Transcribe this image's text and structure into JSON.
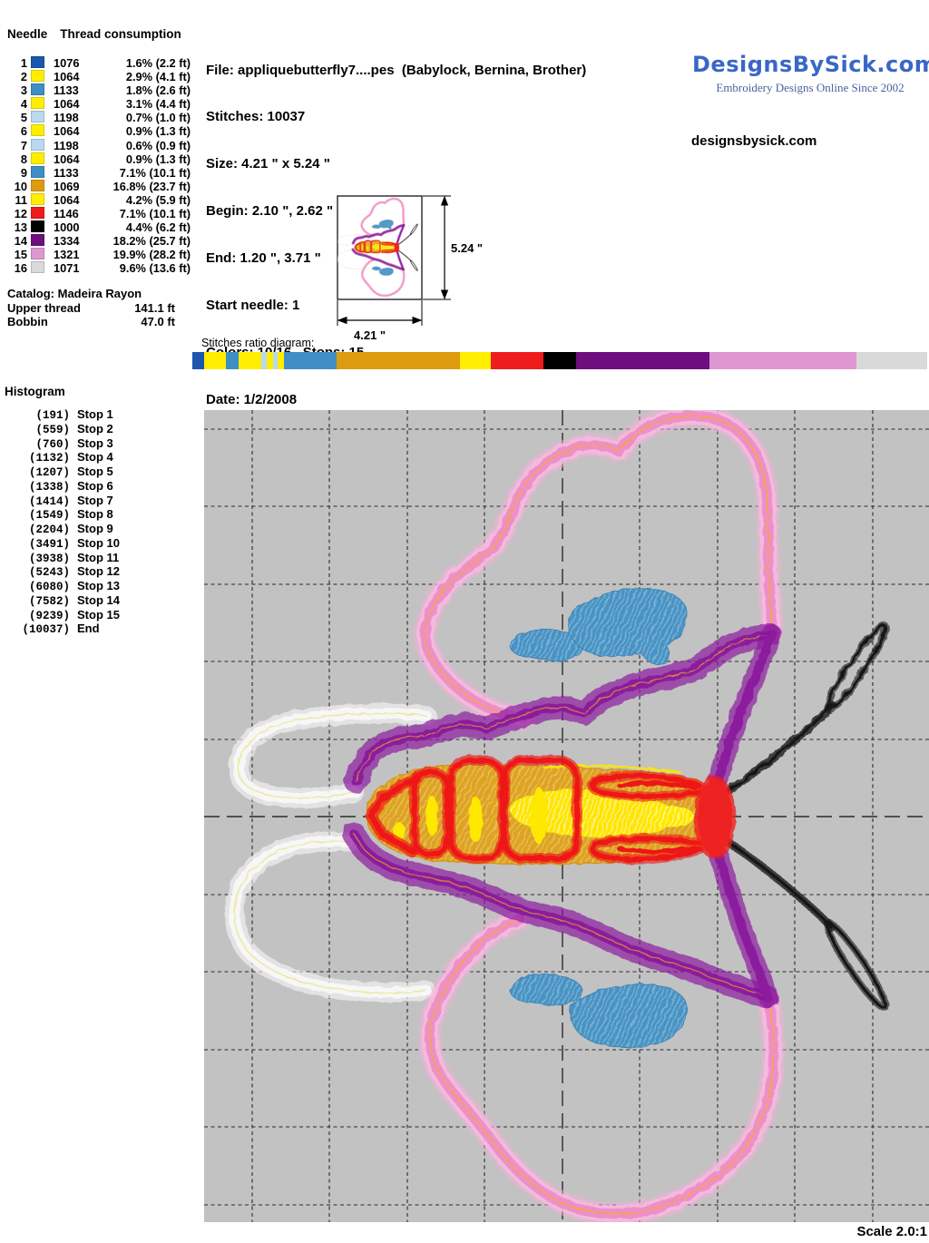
{
  "needle_table": {
    "header_col1": "Needle",
    "header_col2": "Thread consumption",
    "rows": [
      {
        "needle": "1",
        "code": "1076",
        "color": "#1c56ae",
        "pct": "1.6",
        "ft": "2.2"
      },
      {
        "needle": "2",
        "code": "1064",
        "color": "#ffee00",
        "pct": "2.9",
        "ft": "4.1"
      },
      {
        "needle": "3",
        "code": "1133",
        "color": "#3f8fc5",
        "pct": "1.8",
        "ft": "2.6"
      },
      {
        "needle": "4",
        "code": "1064",
        "color": "#ffee00",
        "pct": "3.1",
        "ft": "4.4"
      },
      {
        "needle": "5",
        "code": "1198",
        "color": "#b9d9ef",
        "pct": "0.7",
        "ft": "1.0"
      },
      {
        "needle": "6",
        "code": "1064",
        "color": "#ffee00",
        "pct": "0.9",
        "ft": "1.3"
      },
      {
        "needle": "7",
        "code": "1198",
        "color": "#b9d9ef",
        "pct": "0.6",
        "ft": "0.9"
      },
      {
        "needle": "8",
        "code": "1064",
        "color": "#ffee00",
        "pct": "0.9",
        "ft": "1.3"
      },
      {
        "needle": "9",
        "code": "1133",
        "color": "#3f8fc5",
        "pct": "7.1",
        "ft": "10.1"
      },
      {
        "needle": "10",
        "code": "1069",
        "color": "#dd9c10",
        "pct": "16.8",
        "ft": "23.7"
      },
      {
        "needle": "11",
        "code": "1064",
        "color": "#ffee00",
        "pct": "4.2",
        "ft": "5.9"
      },
      {
        "needle": "12",
        "code": "1146",
        "color": "#ee1c1c",
        "pct": "7.1",
        "ft": "10.1"
      },
      {
        "needle": "13",
        "code": "1000",
        "color": "#000000",
        "pct": "4.4",
        "ft": "6.2"
      },
      {
        "needle": "14",
        "code": "1334",
        "color": "#6e0d7e",
        "pct": "18.2",
        "ft": "25.7"
      },
      {
        "needle": "15",
        "code": "1321",
        "color": "#df97d2",
        "pct": "19.9",
        "ft": "28.2"
      },
      {
        "needle": "16",
        "code": "1071",
        "color": "#d9d9d9",
        "pct": "9.6",
        "ft": "13.6"
      }
    ]
  },
  "totals": {
    "catalog": "Catalog: Madeira Rayon",
    "upper_label": "Upper thread",
    "upper_value": "141.1 ft",
    "bobbin_label": "Bobbin",
    "bobbin_value": "47.0 ft"
  },
  "file_info": {
    "lines": [
      "File: appliquebutterfly7....pes  (Babylock, Bernina, Brother)",
      "Stitches: 10037",
      "Size: 4.21 \" x 5.24 \"",
      "Begin: 2.10 \", 2.62 \"",
      "End: 1.20 \", 3.71 \"",
      "Start needle: 1",
      "Colors: 10/16 , Stops: 15",
      "Date: 1/2/2008"
    ]
  },
  "brand": {
    "logo_text": "DesignsBySick.com",
    "tagline": "Embroidery Designs Online Since 2002",
    "website": "designsbysick.com",
    "logo_color": "#3a67c5"
  },
  "dimensions": {
    "height_label": "5.24 \"",
    "width_label": "4.21 \""
  },
  "ratio_diagram": {
    "label": "Stitches ratio diagram:"
  },
  "histogram": {
    "title": "Histogram",
    "items": [
      {
        "count": "(191)",
        "label": "Stop 1"
      },
      {
        "count": "(559)",
        "label": "Stop 2"
      },
      {
        "count": "(760)",
        "label": "Stop 3"
      },
      {
        "count": "(1132)",
        "label": "Stop 4"
      },
      {
        "count": "(1207)",
        "label": "Stop 5"
      },
      {
        "count": "(1338)",
        "label": "Stop 6"
      },
      {
        "count": "(1414)",
        "label": "Stop 7"
      },
      {
        "count": "(1549)",
        "label": "Stop 8"
      },
      {
        "count": "(2204)",
        "label": "Stop 9"
      },
      {
        "count": "(3491)",
        "label": "Stop 10"
      },
      {
        "count": "(3938)",
        "label": "Stop 11"
      },
      {
        "count": "(5243)",
        "label": "Stop 12"
      },
      {
        "count": "(6080)",
        "label": "Stop 13"
      },
      {
        "count": "(7582)",
        "label": "Stop 14"
      },
      {
        "count": "(9239)",
        "label": "Stop 15"
      },
      {
        "count": "(10037)",
        "label": "End"
      }
    ]
  },
  "scale_label": "Scale 2.0:1",
  "canvas_bg": "#c2c2c2"
}
